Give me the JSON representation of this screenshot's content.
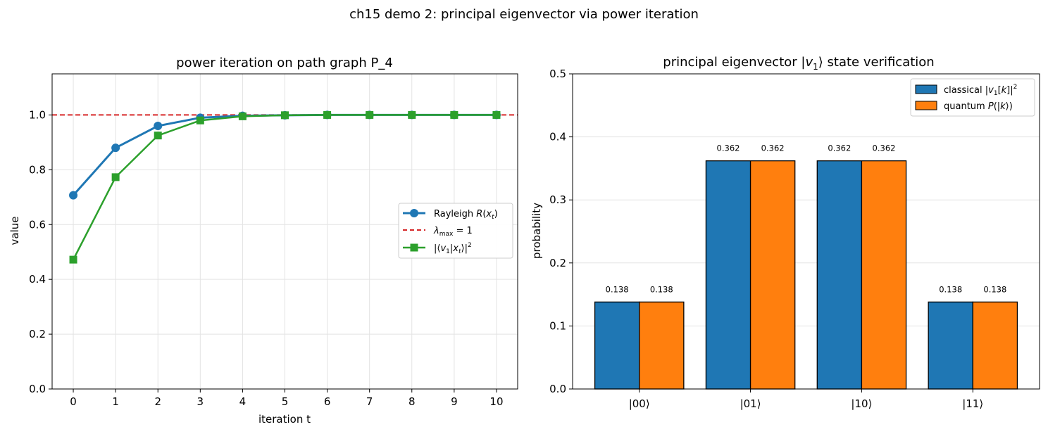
{
  "figure": {
    "suptitle": "ch15 demo 2: principal eigenvector via power iteration"
  },
  "chart_data": [
    {
      "type": "line",
      "title": "power iteration on path graph P_4",
      "xlabel": "iteration t",
      "ylabel": "value",
      "xlim": [
        -0.5,
        10.5
      ],
      "ylim": [
        0.0,
        1.15
      ],
      "x_ticks": [
        "0",
        "1",
        "2",
        "3",
        "4",
        "5",
        "6",
        "7",
        "8",
        "9",
        "10"
      ],
      "y_ticks": [
        "0.0",
        "0.2",
        "0.4",
        "0.6",
        "0.8",
        "1.0"
      ],
      "grid": true,
      "legend_position": "center-right",
      "x": [
        0,
        1,
        2,
        3,
        4,
        5,
        6,
        7,
        8,
        9,
        10
      ],
      "series": [
        {
          "name": "Rayleigh R(x_t)",
          "color": "#1f77b4",
          "marker": "circle",
          "values": [
            0.707,
            0.88,
            0.96,
            0.99,
            0.997,
            0.999,
            1.0,
            1.0,
            1.0,
            1.0,
            1.0
          ]
        },
        {
          "name": "|⟨v_1|x_t⟩|^2",
          "color": "#2ca02c",
          "marker": "square",
          "values": [
            0.472,
            0.773,
            0.925,
            0.98,
            0.995,
            0.999,
            1.0,
            1.0,
            1.0,
            1.0,
            1.0
          ]
        }
      ],
      "hline": {
        "name": "λ_max = 1",
        "value": 1.0,
        "color": "#d62728",
        "style": "dashed"
      }
    },
    {
      "type": "bar",
      "title": "principal eigenvector |v_1⟩ state verification",
      "ylabel": "probability",
      "ylim": [
        0.0,
        0.5
      ],
      "y_ticks": [
        "0.0",
        "0.1",
        "0.2",
        "0.3",
        "0.4",
        "0.5"
      ],
      "grid": true,
      "legend_position": "top-right",
      "categories": [
        "|00⟩",
        "|01⟩",
        "|10⟩",
        "|11⟩"
      ],
      "series": [
        {
          "name": "classical |v_1[k]|^2",
          "color": "#1f77b4",
          "values": [
            0.138,
            0.362,
            0.362,
            0.138
          ],
          "labels": [
            "0.138",
            "0.362",
            "0.362",
            "0.138"
          ]
        },
        {
          "name": "quantum P(|k⟩)",
          "color": "#ff7f0e",
          "values": [
            0.138,
            0.362,
            0.362,
            0.138
          ],
          "labels": [
            "0.138",
            "0.362",
            "0.362",
            "0.138"
          ]
        }
      ]
    }
  ]
}
